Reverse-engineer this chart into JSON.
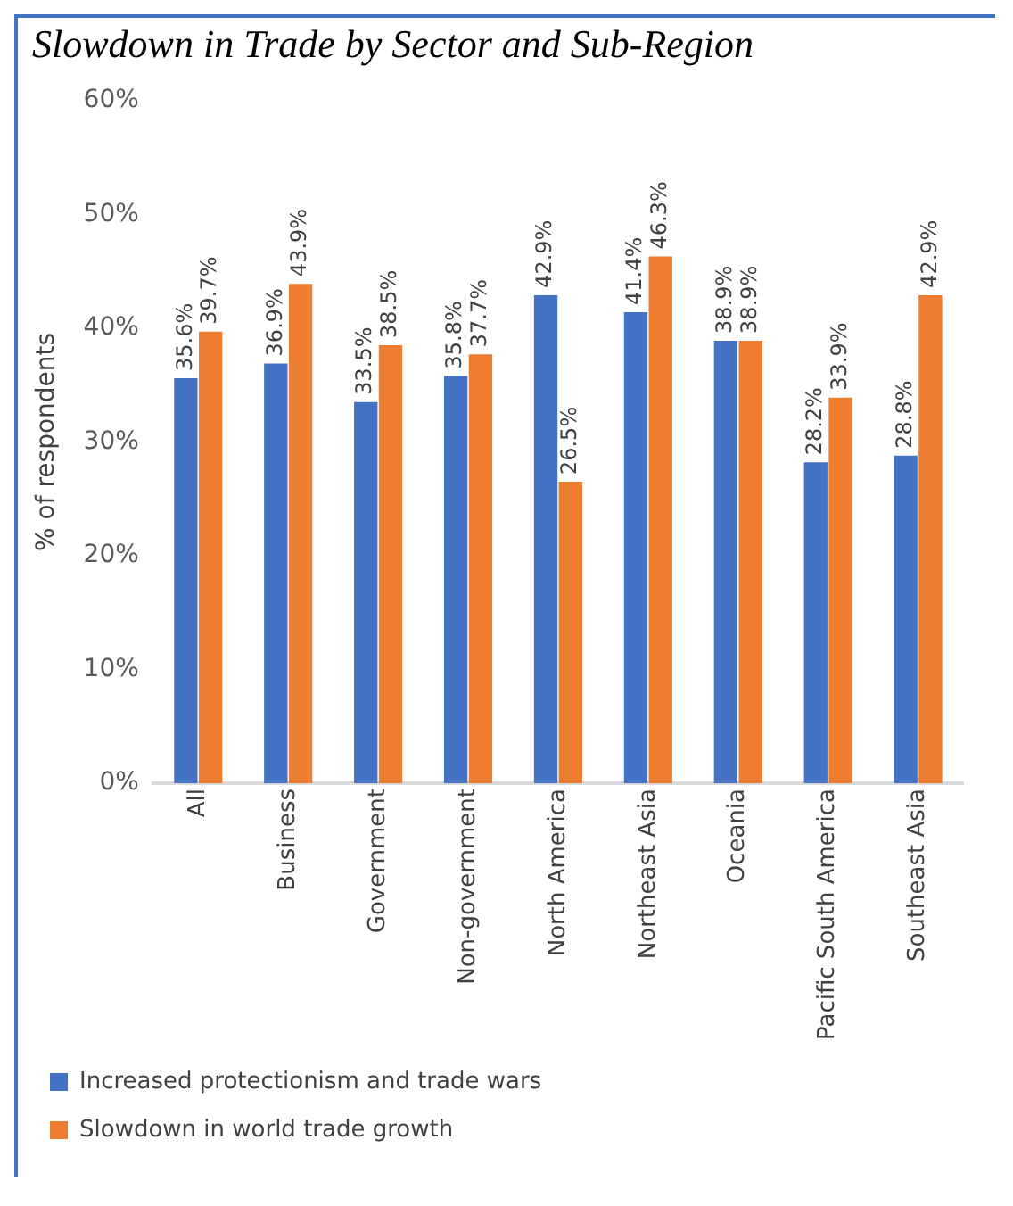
{
  "chart_data": {
    "type": "bar",
    "title": "Slowdown in Trade by Sector and Sub-Region",
    "ylabel": "% of respondents",
    "categories": [
      "All",
      "Business",
      "Government",
      "Non-government",
      "North America",
      "Northeast Asia",
      "Oceania",
      "Pacific South America",
      "Southeast Asia"
    ],
    "series": [
      {
        "name": "Increased protectionism and trade wars",
        "color": "#4472c4",
        "values": [
          35.6,
          36.9,
          33.5,
          35.8,
          42.9,
          41.4,
          38.9,
          28.2,
          28.8
        ],
        "value_labels": [
          "35.6%",
          "36.9%",
          "33.5%",
          "35.8%",
          "42.9%",
          "41.4%",
          "38.9%",
          "28.2%",
          "28.8%"
        ]
      },
      {
        "name": "Slowdown in world trade growth",
        "color": "#ed7d31",
        "values": [
          39.7,
          43.9,
          38.5,
          37.7,
          26.5,
          46.3,
          38.9,
          33.9,
          42.9
        ],
        "value_labels": [
          "39.7%",
          "43.9%",
          "38.5%",
          "37.7%",
          "26.5%",
          "46.3%",
          "38.9%",
          "33.9%",
          "42.9%"
        ]
      }
    ],
    "ylim": [
      0,
      60
    ],
    "yticks": [
      {
        "value": 0,
        "label": "0%"
      },
      {
        "value": 10,
        "label": "10%"
      },
      {
        "value": 20,
        "label": "20%"
      },
      {
        "value": 30,
        "label": "30%"
      },
      {
        "value": 40,
        "label": "40%"
      },
      {
        "value": 50,
        "label": "50%"
      },
      {
        "value": 60,
        "label": "60%"
      }
    ],
    "grid": false,
    "legend": "bottom"
  }
}
